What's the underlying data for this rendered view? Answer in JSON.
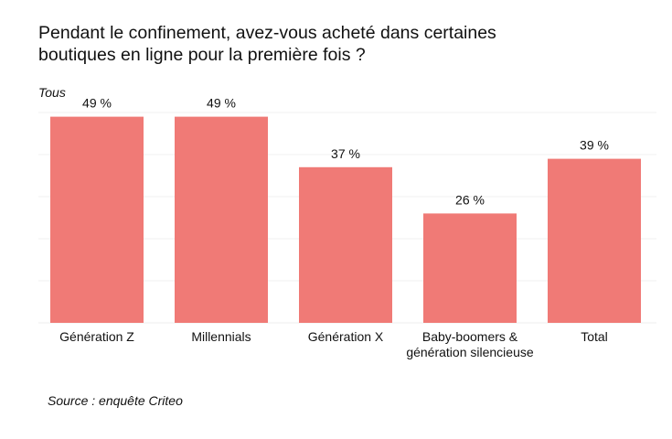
{
  "title_lines": [
    "Pendant le confinement, avez-vous acheté dans certaines",
    "boutiques en ligne pour la première fois ?"
  ],
  "subtitle": "Tous",
  "source": "Source : enquête Criteo",
  "colors": {
    "bar": "#f07a76"
  },
  "chart_data": {
    "type": "bar",
    "title": "Pendant le confinement, avez-vous acheté dans certaines boutiques en ligne pour la première fois ?",
    "subtitle": "Tous",
    "categories": [
      [
        "Génération Z"
      ],
      [
        "Millennials"
      ],
      [
        "Génération X"
      ],
      [
        "Baby-boomers &",
        "génération silencieuse"
      ],
      [
        "Total"
      ]
    ],
    "values": [
      49,
      49,
      37,
      26,
      39
    ],
    "value_labels": [
      "49 %",
      "49 %",
      "37 %",
      "26 %",
      "39 %"
    ],
    "ylim": [
      0,
      55
    ],
    "grid": true,
    "legend": "none"
  }
}
